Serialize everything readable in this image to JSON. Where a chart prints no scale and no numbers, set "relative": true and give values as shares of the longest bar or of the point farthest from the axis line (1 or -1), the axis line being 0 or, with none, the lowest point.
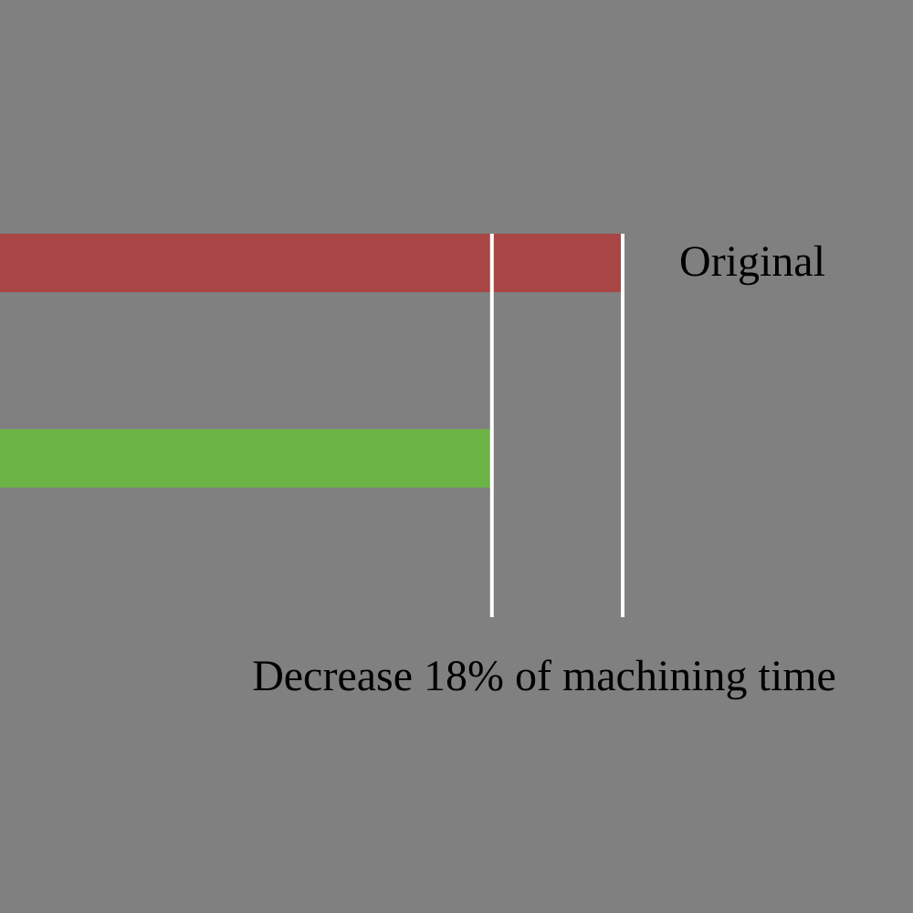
{
  "chart_data": {
    "type": "bar",
    "orientation": "horizontal",
    "relative": true,
    "categories": [
      "Original",
      null
    ],
    "values": [
      1,
      0.79
    ],
    "colors": [
      "#a84646",
      "#6db446"
    ],
    "ref_lines": [
      {
        "axis": "x",
        "value": 0.79,
        "color": "#ffffff"
      },
      {
        "axis": "x",
        "value": 1,
        "color": "#ffffff"
      }
    ],
    "annotations": [
      "Decrease 18% of machining time"
    ]
  }
}
